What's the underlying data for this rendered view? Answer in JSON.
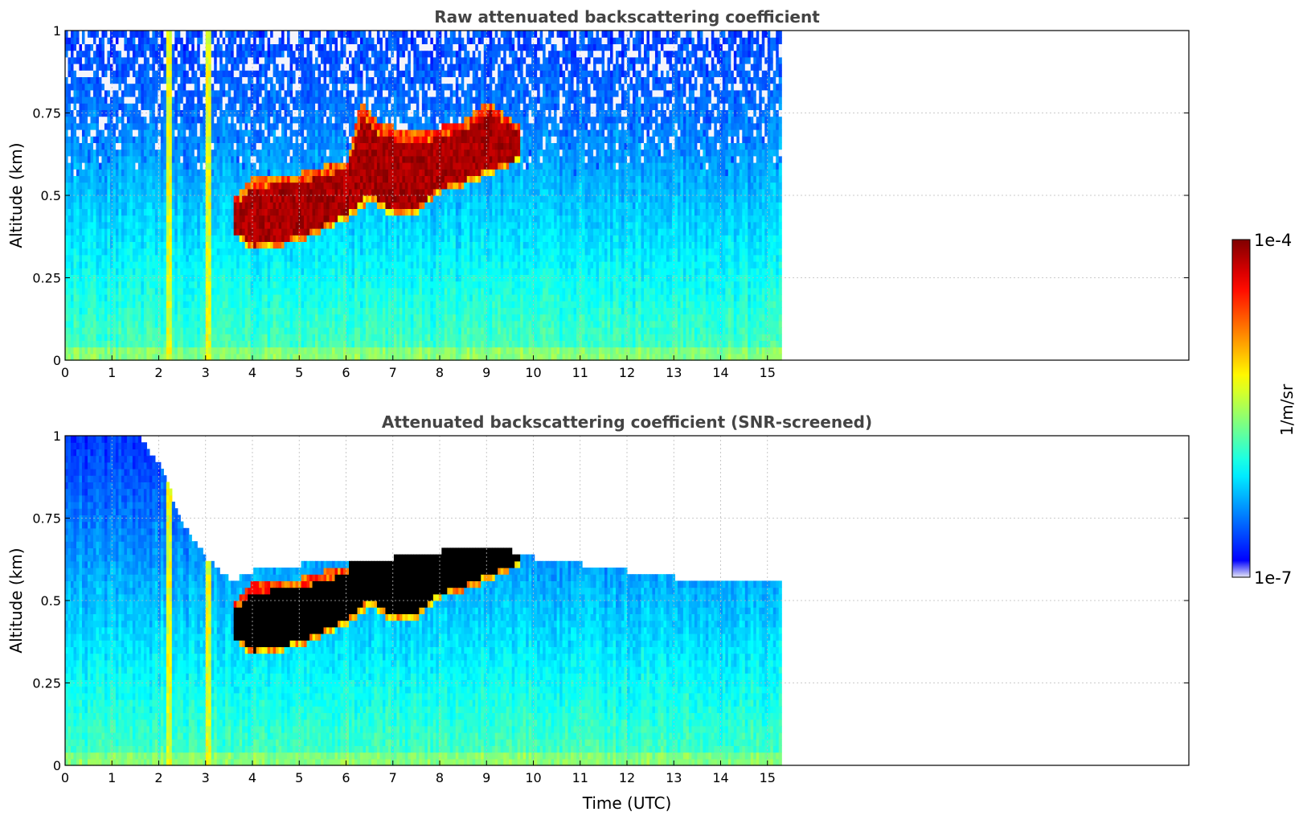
{
  "chart_data": [
    {
      "type": "heatmap",
      "title": "Raw attenuated backscattering coefficient",
      "ylabel": "Altitude (km)",
      "xlabel": "",
      "xlim": [
        0,
        24
      ],
      "ylim": [
        0,
        1
      ],
      "x_ticks": [
        "0",
        "1",
        "2",
        "3",
        "4",
        "5",
        "6",
        "7",
        "8",
        "9",
        "10",
        "11",
        "12",
        "13",
        "14",
        "15"
      ],
      "y_ticks": [
        "0",
        "0.25",
        "0.5",
        "0.75",
        "1"
      ],
      "data_end_time": 15.3,
      "grid": true,
      "screened": false,
      "layer_top": [
        [
          3.6,
          0.48
        ],
        [
          4,
          0.55
        ],
        [
          5,
          0.56
        ],
        [
          6,
          0.6
        ],
        [
          6.3,
          0.78
        ],
        [
          6.6,
          0.72
        ],
        [
          7,
          0.7
        ],
        [
          7.5,
          0.68
        ],
        [
          8,
          0.7
        ],
        [
          8.5,
          0.72
        ],
        [
          9,
          0.78
        ],
        [
          9.7,
          0.7
        ]
      ],
      "layer_bottom": [
        [
          3.6,
          0.37
        ],
        [
          4,
          0.32
        ],
        [
          5,
          0.35
        ],
        [
          6,
          0.42
        ],
        [
          6.5,
          0.47
        ],
        [
          7,
          0.42
        ],
        [
          7.5,
          0.44
        ],
        [
          8,
          0.5
        ],
        [
          8.5,
          0.52
        ],
        [
          9,
          0.55
        ],
        [
          9.7,
          0.6
        ]
      ]
    },
    {
      "type": "heatmap",
      "title": "Attenuated backscattering coefficient (SNR-screened)",
      "ylabel": "Altitude (km)",
      "xlabel": "Time (UTC)",
      "xlim": [
        0,
        24
      ],
      "ylim": [
        0,
        1
      ],
      "x_ticks": [
        "0",
        "1",
        "2",
        "3",
        "4",
        "5",
        "6",
        "7",
        "8",
        "9",
        "10",
        "11",
        "12",
        "13",
        "14",
        "15"
      ],
      "y_ticks": [
        "0",
        "0.25",
        "0.5",
        "0.75",
        "1"
      ],
      "data_end_time": 15.3,
      "grid": true,
      "screened": true,
      "noise_floor": [
        [
          0,
          1.0
        ],
        [
          1.5,
          1.0
        ],
        [
          2.0,
          0.9
        ],
        [
          2.5,
          0.72
        ],
        [
          3.0,
          0.62
        ],
        [
          3.5,
          0.55
        ],
        [
          4.0,
          0.58
        ],
        [
          5.0,
          0.6
        ],
        [
          6.0,
          0.62
        ],
        [
          7.0,
          0.62
        ],
        [
          8.0,
          0.64
        ],
        [
          9.0,
          0.66
        ],
        [
          10.0,
          0.62
        ],
        [
          11.0,
          0.6
        ],
        [
          12.0,
          0.58
        ],
        [
          13.0,
          0.56
        ],
        [
          14.0,
          0.56
        ],
        [
          15.3,
          0.56
        ]
      ]
    }
  ],
  "colorbar": {
    "label": "1/m/sr",
    "max_label": "1e-4",
    "min_label": "1e-7",
    "colormap": "jet",
    "min_color": "#e6e6f5",
    "max_color": "#800000"
  }
}
